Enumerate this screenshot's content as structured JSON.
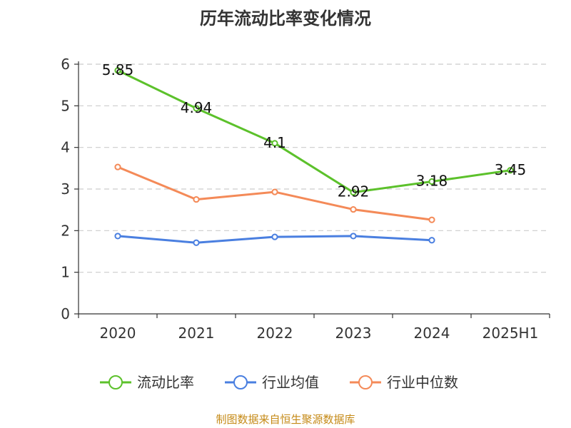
{
  "chart_data": {
    "type": "line",
    "title": "历年流动比率变化情况",
    "categories": [
      "2020",
      "2021",
      "2022",
      "2023",
      "2024",
      "2025H1"
    ],
    "y_ticks": [
      "0",
      "1",
      "2",
      "3",
      "4",
      "5",
      "6"
    ],
    "ylim": [
      0,
      6
    ],
    "grid": true,
    "legend_position": "bottom",
    "series": [
      {
        "name": "流动比率",
        "color": "#5cc12b",
        "values": [
          5.85,
          4.94,
          4.1,
          2.92,
          3.18,
          3.45
        ],
        "labels": [
          "5.85",
          "4.94",
          "4.1",
          "2.92",
          "3.18",
          "3.45"
        ]
      },
      {
        "name": "行业均值",
        "color": "#4a7fe0",
        "values": [
          1.87,
          1.71,
          1.85,
          1.87,
          1.77,
          null
        ]
      },
      {
        "name": "行业中位数",
        "color": "#f48a58",
        "values": [
          3.53,
          2.75,
          2.93,
          2.51,
          2.26,
          null
        ]
      }
    ],
    "source": "制图数据来自恒生聚源数据库",
    "source_color": "#c58a17"
  }
}
